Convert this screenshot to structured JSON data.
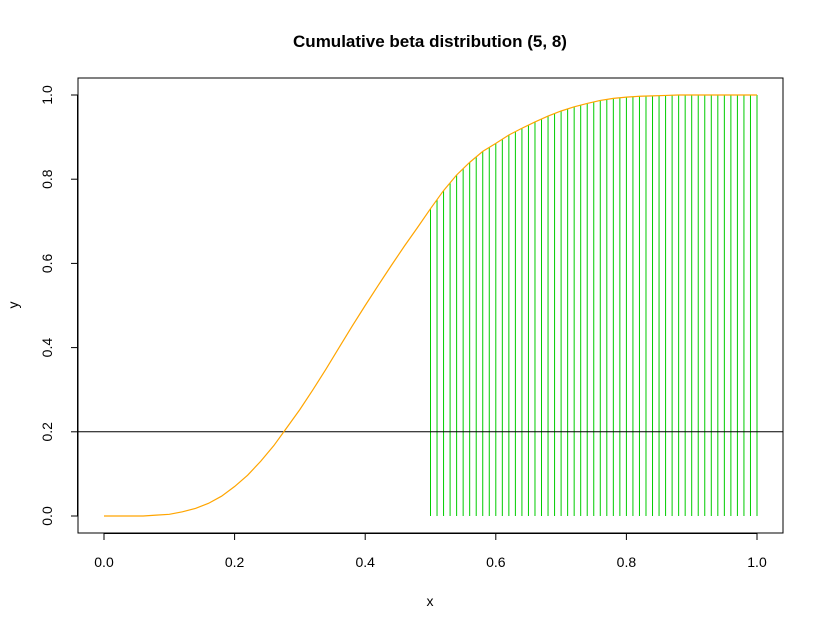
{
  "chart_data": {
    "type": "line",
    "title": "Cumulative beta distribution (5, 8)",
    "xlabel": "x",
    "ylabel": "y",
    "xlim": [
      0.0,
      1.0
    ],
    "ylim": [
      0.0,
      1.0
    ],
    "x_ticks": [
      "0.0",
      "0.2",
      "0.4",
      "0.6",
      "0.8",
      "1.0"
    ],
    "y_ticks": [
      "0.0",
      "0.2",
      "0.4",
      "0.6",
      "0.8",
      "1.0"
    ],
    "grid": false,
    "legend": "none",
    "series": [
      {
        "type": "line",
        "color": "#FFA500",
        "x": [
          0.0,
          0.02,
          0.04,
          0.06,
          0.08,
          0.1,
          0.12,
          0.14,
          0.16,
          0.18,
          0.2,
          0.22,
          0.24,
          0.26,
          0.28,
          0.3,
          0.32,
          0.34,
          0.36,
          0.38,
          0.4,
          0.42,
          0.44,
          0.46,
          0.48,
          0.5,
          0.52,
          0.54,
          0.56,
          0.58,
          0.6,
          0.62,
          0.64,
          0.66,
          0.68,
          0.7,
          0.72,
          0.74,
          0.76,
          0.78,
          0.8,
          0.82,
          0.84,
          0.86,
          0.88,
          0.9,
          0.92,
          0.94,
          0.96,
          0.98,
          1.0
        ],
        "y": [
          0.0,
          0.0,
          0.0,
          0.0,
          0.002,
          0.004,
          0.01,
          0.018,
          0.03,
          0.047,
          0.07,
          0.097,
          0.13,
          0.167,
          0.21,
          0.253,
          0.3,
          0.349,
          0.4,
          0.451,
          0.5,
          0.548,
          0.595,
          0.641,
          0.685,
          0.73,
          0.773,
          0.81,
          0.84,
          0.866,
          0.885,
          0.905,
          0.921,
          0.936,
          0.95,
          0.962,
          0.972,
          0.98,
          0.987,
          0.992,
          0.995,
          0.997,
          0.998,
          0.999,
          1.0,
          1.0,
          1.0,
          1.0,
          1.0,
          1.0,
          1.0
        ]
      },
      {
        "type": "vertical-segments",
        "color": "#00CC00",
        "x_start": 0.5,
        "x_end": 1.0,
        "step": 0.01
      },
      {
        "type": "hline",
        "color": "#000000",
        "y": 0.2
      }
    ]
  }
}
